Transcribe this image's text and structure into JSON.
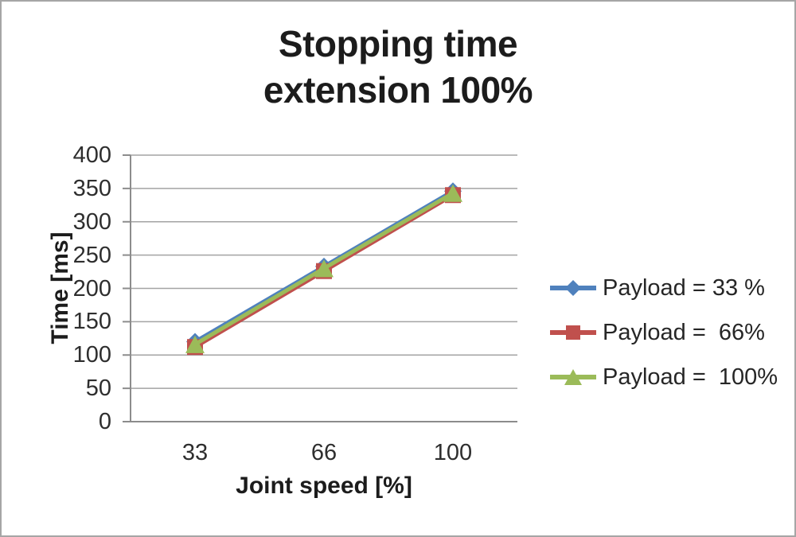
{
  "chart": {
    "frame_border_color": "#a6a6a6",
    "background_color": "#ffffff",
    "gridline_color": "#a3a3a3",
    "axis_color": "#8c8c8c",
    "text_color": "#262626"
  },
  "chart_data": {
    "type": "line",
    "title": "Stopping time extension 100%",
    "title_lines": [
      "Stopping time",
      "extension 100%"
    ],
    "xlabel": "Joint speed [%]",
    "ylabel": "Time [ms]",
    "categories": [
      "33",
      "66",
      "100"
    ],
    "series": [
      {
        "name": "Payload = 33 %",
        "marker": "diamond",
        "color": "#4f81bd",
        "values": [
          120,
          233,
          346
        ]
      },
      {
        "name": "Payload =  66%",
        "marker": "square",
        "color": "#c0504d",
        "values": [
          112,
          226,
          340
        ]
      },
      {
        "name": "Payload =  100%",
        "marker": "triangle",
        "color": "#9bbb59",
        "values": [
          116,
          230,
          343
        ]
      }
    ],
    "ylim": [
      0,
      400
    ],
    "ytick_step": 50,
    "grid": true,
    "legend_position": "right"
  }
}
